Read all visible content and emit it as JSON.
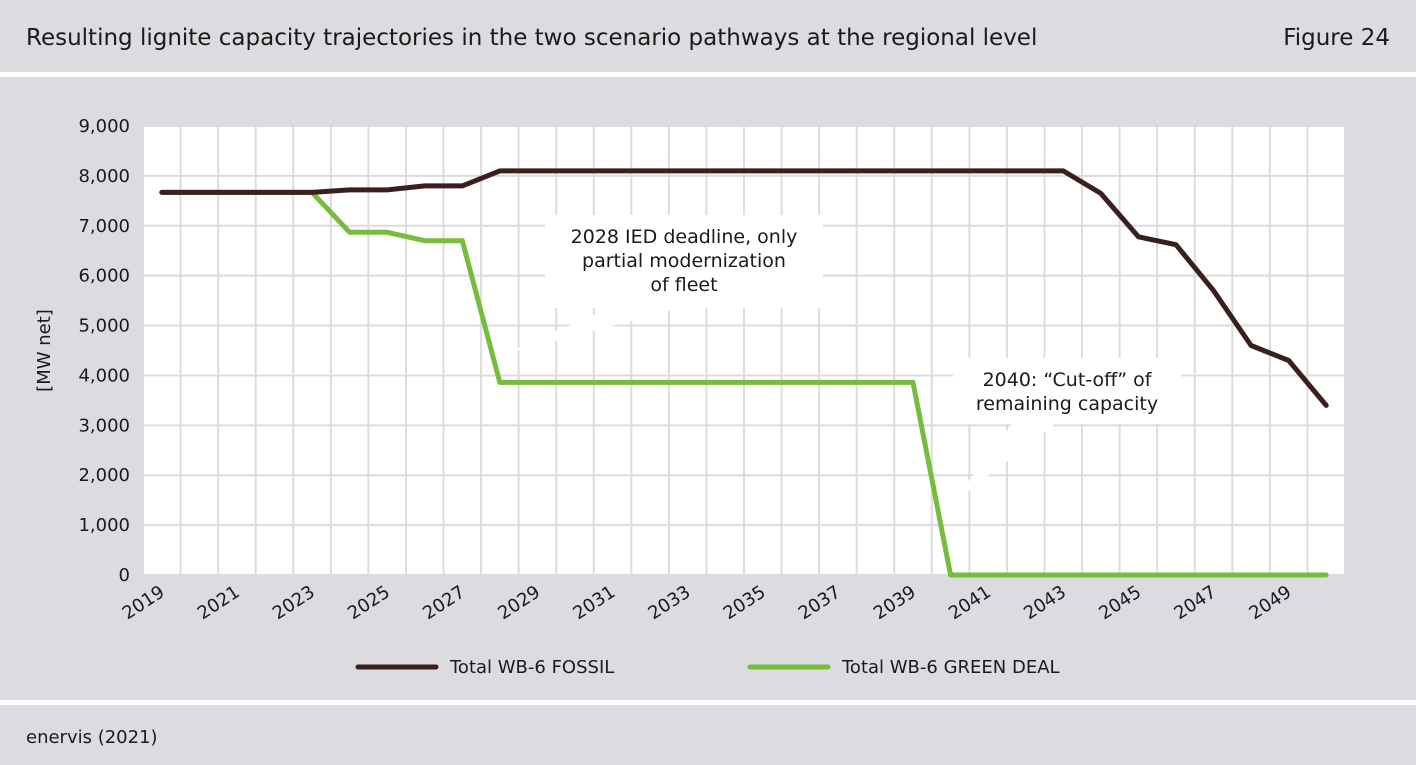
{
  "header": {
    "title": "Resulting lignite capacity trajectories in the two scenario pathways at the regional level",
    "figure_label": "Figure 24"
  },
  "footer": {
    "source": "enervis (2021)"
  },
  "colors": {
    "fossil": "#3a1f1f",
    "green_deal": "#76bd3d",
    "background": "#dcdbe0",
    "plot_background": "#ffffff"
  },
  "chart_data": {
    "type": "line",
    "title": "",
    "xlabel": "",
    "ylabel": "[MW net]",
    "xlim": [
      2019,
      2050
    ],
    "ylim": [
      0,
      9000
    ],
    "y_ticks": [
      0,
      1000,
      2000,
      3000,
      4000,
      5000,
      6000,
      7000,
      8000,
      9000
    ],
    "y_tick_labels": [
      "0",
      "1,000",
      "2,000",
      "3,000",
      "4,000",
      "5,000",
      "6,000",
      "7,000",
      "8,000",
      "9,000"
    ],
    "x_tick_labels": [
      "2019",
      "2021",
      "2023",
      "2025",
      "2027",
      "2029",
      "2031",
      "2033",
      "2035",
      "2037",
      "2039",
      "2041",
      "2043",
      "2045",
      "2047",
      "2049"
    ],
    "grid": true,
    "legend_position": "bottom",
    "x": [
      2019,
      2020,
      2021,
      2022,
      2023,
      2024,
      2025,
      2026,
      2027,
      2028,
      2029,
      2030,
      2031,
      2032,
      2033,
      2034,
      2035,
      2036,
      2037,
      2038,
      2039,
      2040,
      2041,
      2042,
      2043,
      2044,
      2045,
      2046,
      2047,
      2048,
      2049,
      2050
    ],
    "series": [
      {
        "name": "Total WB-6 FOSSIL",
        "color": "#3a1f1f",
        "values": [
          7670,
          7670,
          7670,
          7670,
          7670,
          7720,
          7720,
          7800,
          7800,
          8100,
          8100,
          8100,
          8100,
          8100,
          8100,
          8100,
          8100,
          8100,
          8100,
          8100,
          8100,
          8100,
          8100,
          8100,
          8100,
          7650,
          6780,
          6620,
          5700,
          4600,
          4300,
          3400
        ]
      },
      {
        "name": "Total WB-6 GREEN DEAL",
        "color": "#76bd3d",
        "values": [
          7670,
          7670,
          7670,
          7670,
          7670,
          6870,
          6870,
          6700,
          6700,
          3860,
          3860,
          3860,
          3860,
          3860,
          3860,
          3860,
          3860,
          3860,
          3860,
          3860,
          3860,
          0,
          0,
          0,
          0,
          0,
          0,
          0,
          0,
          0,
          0,
          0
        ]
      }
    ],
    "annotations": [
      {
        "lines": [
          "2028 IED deadline, only",
          "partial modernization",
          "of fleet"
        ],
        "target_x": 2028,
        "target_y": 4400
      },
      {
        "lines": [
          "2040: “Cut-off” of",
          "remaining capacity"
        ],
        "target_x": 2040,
        "target_y": 1400
      }
    ]
  }
}
